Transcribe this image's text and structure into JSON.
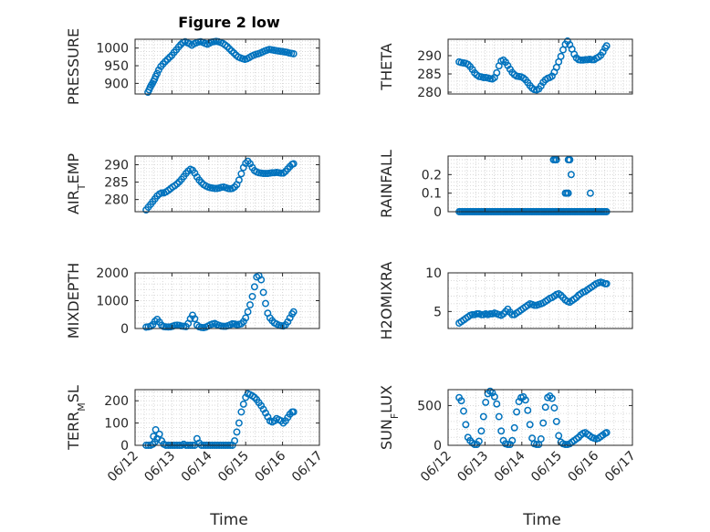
{
  "figure": {
    "title": "Figure 2 low",
    "xlabel_left": "Time",
    "xlabel_right": "Time",
    "marker_color": "#0072BD",
    "x_ticks": [
      "06/12",
      "06/13",
      "06/14",
      "06/15",
      "06/16",
      "06/17"
    ]
  },
  "chart_data": [
    {
      "type": "scatter",
      "id": "pressure",
      "ylabel": "PRESSURE",
      "yticks": [
        900,
        950,
        1000
      ],
      "ytick_labels": [
        "900",
        "950",
        "1000"
      ],
      "ylim": [
        870,
        1025
      ],
      "x": [
        0.35,
        0.38,
        0.41,
        0.44,
        0.47,
        0.5,
        0.53,
        0.56,
        0.6,
        0.64,
        0.7,
        0.76,
        0.82,
        0.88,
        0.94,
        1.0,
        1.06,
        1.12,
        1.18,
        1.24,
        1.3,
        1.36,
        1.42,
        1.48,
        1.54,
        1.6,
        1.66,
        1.72,
        1.78,
        1.84,
        1.9,
        1.96,
        2.02,
        2.08,
        2.14,
        2.2,
        2.26,
        2.32,
        2.38,
        2.44,
        2.5,
        2.56,
        2.62,
        2.68,
        2.74,
        2.8,
        2.86,
        2.92,
        2.98,
        3.04,
        3.1,
        3.16,
        3.22,
        3.28,
        3.34,
        3.4,
        3.46,
        3.52,
        3.58,
        3.64,
        3.7,
        3.76,
        3.82,
        3.88,
        3.94,
        4.0,
        4.06,
        4.12,
        4.18,
        4.24,
        4.3
      ],
      "y": [
        875,
        882,
        889,
        895,
        900,
        906,
        912,
        920,
        928,
        938,
        948,
        955,
        962,
        968,
        974,
        980,
        988,
        995,
        1003,
        1010,
        1016,
        1018,
        1015,
        1012,
        1008,
        1012,
        1015,
        1017,
        1018,
        1016,
        1013,
        1011,
        1014,
        1017,
        1018,
        1019,
        1018,
        1016,
        1013,
        1009,
        1004,
        998,
        992,
        986,
        980,
        975,
        972,
        970,
        968,
        970,
        973,
        977,
        980,
        982,
        984,
        986,
        989,
        992,
        994,
        996,
        995,
        994,
        993,
        992,
        991,
        990,
        989,
        988,
        986,
        985,
        984
      ]
    },
    {
      "type": "scatter",
      "id": "theta",
      "ylabel": "THETA",
      "yticks": [
        280,
        285,
        290
      ],
      "ytick_labels": [
        "280",
        "285",
        "290"
      ],
      "ylim": [
        279.5,
        294.5
      ],
      "x": [
        0.3,
        0.36,
        0.42,
        0.48,
        0.54,
        0.6,
        0.66,
        0.72,
        0.78,
        0.84,
        0.9,
        0.96,
        1.02,
        1.08,
        1.14,
        1.2,
        1.26,
        1.32,
        1.38,
        1.44,
        1.5,
        1.56,
        1.62,
        1.68,
        1.74,
        1.8,
        1.86,
        1.92,
        1.98,
        2.04,
        2.1,
        2.16,
        2.22,
        2.28,
        2.34,
        2.4,
        2.46,
        2.52,
        2.58,
        2.64,
        2.7,
        2.76,
        2.82,
        2.88,
        2.94,
        3.0,
        3.06,
        3.12,
        3.18,
        3.24,
        3.3,
        3.36,
        3.42,
        3.48,
        3.54,
        3.6,
        3.66,
        3.72,
        3.78,
        3.84,
        3.9,
        3.96,
        4.02,
        4.08,
        4.14,
        4.2,
        4.26,
        4.3
      ],
      "y": [
        288.3,
        288.1,
        288.0,
        287.9,
        287.6,
        287.0,
        286.2,
        285.3,
        284.7,
        284.3,
        284.2,
        284.0,
        284.0,
        283.9,
        283.7,
        283.6,
        284.0,
        285.3,
        287.2,
        288.5,
        288.8,
        288.2,
        287.3,
        286.3,
        285.4,
        284.8,
        284.4,
        284.3,
        284.2,
        283.9,
        283.4,
        282.6,
        281.8,
        281.1,
        280.7,
        280.6,
        280.9,
        281.7,
        282.7,
        283.4,
        283.8,
        284.0,
        284.4,
        285.5,
        286.8,
        288.3,
        289.8,
        291.6,
        293.1,
        294.0,
        293.0,
        291.8,
        290.4,
        289.4,
        288.9,
        288.8,
        288.8,
        288.9,
        288.9,
        289.0,
        288.9,
        288.9,
        289.3,
        289.6,
        290.1,
        291.0,
        292.1,
        292.7
      ]
    },
    {
      "type": "scatter",
      "id": "air_temp",
      "ylabel": "AIR_TEMP",
      "yticks": [
        280,
        285,
        290
      ],
      "ytick_labels": [
        "280",
        "285",
        "290"
      ],
      "ylim": [
        276.5,
        292.5
      ],
      "x": [
        0.3,
        0.36,
        0.42,
        0.48,
        0.54,
        0.6,
        0.66,
        0.72,
        0.78,
        0.84,
        0.9,
        0.96,
        1.02,
        1.08,
        1.14,
        1.2,
        1.26,
        1.32,
        1.38,
        1.44,
        1.5,
        1.56,
        1.62,
        1.68,
        1.74,
        1.8,
        1.86,
        1.92,
        1.98,
        2.04,
        2.1,
        2.16,
        2.22,
        2.28,
        2.34,
        2.4,
        2.46,
        2.52,
        2.58,
        2.64,
        2.7,
        2.76,
        2.82,
        2.88,
        2.94,
        3.0,
        3.06,
        3.12,
        3.18,
        3.24,
        3.3,
        3.36,
        3.42,
        3.48,
        3.54,
        3.6,
        3.66,
        3.72,
        3.78,
        3.84,
        3.9,
        3.96,
        4.02,
        4.08,
        4.14,
        4.2,
        4.26,
        4.3
      ],
      "y": [
        277.0,
        277.8,
        278.6,
        279.4,
        280.2,
        281.0,
        281.6,
        281.9,
        281.9,
        282.2,
        282.6,
        283.1,
        283.6,
        284.0,
        284.5,
        285.1,
        285.8,
        286.6,
        287.5,
        288.2,
        288.7,
        288.4,
        287.6,
        286.5,
        285.6,
        284.9,
        284.3,
        283.9,
        283.6,
        283.4,
        283.3,
        283.2,
        283.2,
        283.3,
        283.5,
        283.6,
        283.4,
        283.2,
        283.1,
        283.2,
        283.6,
        284.3,
        285.6,
        287.4,
        289.2,
        290.4,
        291.0,
        290.3,
        289.2,
        288.3,
        287.9,
        287.7,
        287.6,
        287.5,
        287.5,
        287.5,
        287.6,
        287.7,
        287.7,
        287.8,
        287.7,
        287.6,
        287.6,
        288.1,
        288.8,
        289.5,
        290.1,
        290.3
      ]
    },
    {
      "type": "scatter",
      "id": "rainfall",
      "ylabel": "RAINFALL",
      "yticks": [
        0,
        0.1,
        0.2
      ],
      "ytick_labels": [
        "0",
        "0.1",
        "0.2"
      ],
      "ylim": [
        0,
        0.3
      ],
      "x": [
        0.3,
        0.34,
        0.38,
        0.42,
        0.46,
        0.5,
        0.54,
        0.58,
        0.62,
        0.66,
        0.7,
        0.74,
        0.78,
        0.82,
        0.86,
        0.9,
        0.94,
        0.98,
        1.02,
        1.06,
        1.1,
        1.14,
        1.18,
        1.22,
        1.26,
        1.3,
        1.34,
        1.38,
        1.42,
        1.46,
        1.5,
        1.54,
        1.58,
        1.62,
        1.66,
        1.7,
        1.74,
        1.78,
        1.82,
        1.86,
        1.9,
        1.94,
        1.98,
        2.02,
        2.06,
        2.1,
        2.14,
        2.18,
        2.22,
        2.26,
        2.3,
        2.34,
        2.38,
        2.42,
        2.46,
        2.5,
        2.54,
        2.58,
        2.62,
        2.66,
        2.7,
        2.74,
        2.78,
        2.82,
        2.86,
        2.9,
        2.94,
        2.98,
        3.02,
        3.06,
        3.1,
        3.14,
        3.18,
        3.22,
        3.26,
        3.3,
        3.34,
        3.38,
        3.42,
        3.46,
        3.5,
        3.54,
        3.58,
        3.62,
        3.66,
        3.7,
        3.74,
        3.78,
        3.82,
        3.86,
        3.9,
        3.94,
        3.98,
        4.02,
        4.06,
        4.1,
        4.14,
        4.18,
        4.22,
        4.26,
        4.3,
        2.86,
        2.9,
        2.94,
        3.18,
        3.22,
        3.26,
        3.3,
        3.26,
        3.3,
        3.34,
        3.86
      ],
      "y": [
        0,
        0,
        0,
        0,
        0,
        0,
        0,
        0,
        0,
        0,
        0,
        0,
        0,
        0,
        0,
        0,
        0,
        0,
        0,
        0,
        0,
        0,
        0,
        0,
        0,
        0,
        0,
        0,
        0,
        0,
        0,
        0,
        0,
        0,
        0,
        0,
        0,
        0,
        0,
        0,
        0,
        0,
        0,
        0,
        0,
        0,
        0,
        0,
        0,
        0,
        0,
        0,
        0,
        0,
        0,
        0,
        0,
        0,
        0,
        0,
        0,
        0,
        0,
        0,
        0,
        0,
        0,
        0,
        0,
        0,
        0,
        0,
        0,
        0,
        0,
        0,
        0,
        0,
        0,
        0,
        0,
        0,
        0,
        0,
        0,
        0,
        0,
        0,
        0,
        0,
        0,
        0,
        0,
        0,
        0,
        0,
        0,
        0,
        0,
        0,
        0,
        0.28,
        0.28,
        0.28,
        0.1,
        0.1,
        0.1,
        0.28,
        0.28,
        0.28,
        0.2,
        0.1
      ]
    },
    {
      "type": "scatter",
      "id": "mixdepth",
      "ylabel": "MIXDEPTH",
      "yticks": [
        0,
        1000,
        2000
      ],
      "ytick_labels": [
        "0",
        "1000",
        "2000"
      ],
      "ylim": [
        0,
        2000
      ],
      "x": [
        0.3,
        0.36,
        0.42,
        0.48,
        0.54,
        0.6,
        0.66,
        0.72,
        0.78,
        0.84,
        0.9,
        0.96,
        1.02,
        1.08,
        1.14,
        1.2,
        1.26,
        1.32,
        1.38,
        1.44,
        1.5,
        1.56,
        1.62,
        1.68,
        1.74,
        1.8,
        1.86,
        1.92,
        1.98,
        2.04,
        2.1,
        2.16,
        2.22,
        2.28,
        2.34,
        2.4,
        2.46,
        2.52,
        2.58,
        2.64,
        2.7,
        2.76,
        2.82,
        2.88,
        2.94,
        3.0,
        3.06,
        3.12,
        3.18,
        3.24,
        3.3,
        3.36,
        3.42,
        3.48,
        3.54,
        3.6,
        3.66,
        3.72,
        3.78,
        3.84,
        3.9,
        3.96,
        4.02,
        4.08,
        4.14,
        4.2,
        4.26,
        4.3
      ],
      "y": [
        50,
        60,
        80,
        140,
        260,
        330,
        230,
        120,
        70,
        60,
        55,
        60,
        80,
        110,
        120,
        110,
        90,
        80,
        70,
        180,
        350,
        480,
        350,
        120,
        60,
        40,
        30,
        50,
        90,
        130,
        160,
        180,
        140,
        110,
        90,
        80,
        80,
        100,
        130,
        170,
        160,
        140,
        150,
        170,
        250,
        380,
        600,
        850,
        1150,
        1500,
        1850,
        1900,
        1750,
        1300,
        900,
        550,
        380,
        280,
        200,
        160,
        120,
        100,
        90,
        130,
        240,
        380,
        520,
        600
      ]
    },
    {
      "type": "scatter",
      "id": "h2omixra",
      "ylabel": "H2OMIXRA",
      "yticks": [
        5,
        10
      ],
      "ytick_labels": [
        "5",
        "10"
      ],
      "ylim": [
        2.8,
        10
      ],
      "x": [
        0.3,
        0.36,
        0.42,
        0.48,
        0.54,
        0.6,
        0.66,
        0.72,
        0.78,
        0.84,
        0.9,
        0.96,
        1.02,
        1.08,
        1.14,
        1.2,
        1.26,
        1.32,
        1.38,
        1.44,
        1.5,
        1.56,
        1.62,
        1.68,
        1.74,
        1.8,
        1.86,
        1.92,
        1.98,
        2.04,
        2.1,
        2.16,
        2.22,
        2.28,
        2.34,
        2.4,
        2.46,
        2.52,
        2.58,
        2.64,
        2.7,
        2.76,
        2.82,
        2.88,
        2.94,
        3.0,
        3.06,
        3.12,
        3.18,
        3.24,
        3.3,
        3.36,
        3.42,
        3.48,
        3.54,
        3.6,
        3.66,
        3.72,
        3.78,
        3.84,
        3.9,
        3.96,
        4.02,
        4.08,
        4.14,
        4.2,
        4.26,
        4.3
      ],
      "y": [
        3.5,
        3.7,
        3.9,
        4.1,
        4.3,
        4.5,
        4.6,
        4.6,
        4.7,
        4.7,
        4.6,
        4.6,
        4.7,
        4.6,
        4.7,
        4.7,
        4.8,
        4.7,
        4.6,
        4.5,
        4.7,
        5.0,
        5.3,
        4.9,
        4.6,
        4.6,
        4.8,
        5.0,
        5.2,
        5.4,
        5.6,
        5.8,
        6.0,
        5.9,
        5.8,
        5.8,
        5.9,
        6.0,
        6.1,
        6.3,
        6.5,
        6.7,
        6.8,
        7.0,
        7.2,
        7.3,
        7.1,
        6.8,
        6.5,
        6.3,
        6.2,
        6.4,
        6.6,
        6.8,
        7.1,
        7.3,
        7.5,
        7.6,
        7.8,
        8.0,
        8.2,
        8.4,
        8.6,
        8.7,
        8.8,
        8.7,
        8.6,
        8.6
      ]
    },
    {
      "type": "scatter",
      "id": "terr_msl",
      "ylabel": "TERR_MSL",
      "yticks": [
        0,
        100,
        200
      ],
      "ytick_labels": [
        "0",
        "100",
        "200"
      ],
      "ylim": [
        0,
        250
      ],
      "x": [
        0.3,
        0.36,
        0.42,
        0.48,
        0.54,
        0.6,
        0.66,
        0.72,
        0.78,
        0.84,
        0.9,
        0.96,
        1.02,
        1.08,
        1.14,
        1.2,
        1.26,
        1.32,
        1.38,
        1.44,
        1.5,
        1.56,
        1.62,
        1.68,
        1.74,
        1.8,
        1.86,
        1.92,
        1.98,
        2.04,
        2.1,
        2.16,
        2.22,
        2.28,
        2.34,
        2.4,
        2.46,
        2.52,
        2.58,
        2.64,
        2.7,
        2.76,
        2.82,
        2.88,
        2.94,
        3.0,
        3.06,
        3.12,
        3.18,
        3.24,
        3.3,
        3.36,
        3.42,
        3.48,
        3.54,
        3.6,
        3.66,
        3.72,
        3.78,
        3.84,
        3.9,
        3.96,
        4.02,
        4.08,
        4.14,
        4.2,
        4.26,
        4.3,
        0.5,
        0.56
      ],
      "y": [
        0,
        0,
        0,
        5,
        15,
        30,
        50,
        20,
        5,
        0,
        0,
        0,
        0,
        0,
        0,
        0,
        0,
        5,
        0,
        0,
        0,
        0,
        0,
        30,
        10,
        0,
        0,
        0,
        0,
        0,
        0,
        0,
        0,
        0,
        0,
        0,
        0,
        0,
        0,
        0,
        20,
        60,
        100,
        150,
        185,
        215,
        232,
        228,
        222,
        215,
        205,
        192,
        178,
        162,
        145,
        128,
        110,
        105,
        110,
        120,
        115,
        110,
        100,
        110,
        125,
        140,
        150,
        150,
        40,
        70
      ]
    },
    {
      "type": "scatter",
      "id": "sun_flux",
      "ylabel": "SUN_FLUX",
      "yticks": [
        0,
        500
      ],
      "ytick_labels": [
        "0",
        "500"
      ],
      "ylim": [
        0,
        700
      ],
      "x": [
        0.3,
        0.36,
        0.42,
        0.48,
        0.54,
        0.6,
        0.66,
        0.72,
        0.78,
        0.84,
        0.9,
        0.96,
        1.02,
        1.08,
        1.14,
        1.2,
        1.26,
        1.32,
        1.38,
        1.44,
        1.5,
        1.56,
        1.62,
        1.68,
        1.74,
        1.8,
        1.86,
        1.92,
        1.98,
        2.04,
        2.1,
        2.16,
        2.22,
        2.28,
        2.34,
        2.4,
        2.46,
        2.52,
        2.58,
        2.64,
        2.7,
        2.76,
        2.82,
        2.88,
        2.94,
        3.0,
        3.06,
        3.12,
        3.18,
        3.24,
        3.3,
        3.36,
        3.42,
        3.48,
        3.54,
        3.6,
        3.66,
        3.72,
        3.78,
        3.84,
        3.9,
        3.96,
        4.02,
        4.08,
        4.14,
        4.2,
        4.26,
        4.3
      ],
      "y": [
        600,
        560,
        430,
        260,
        100,
        60,
        30,
        10,
        10,
        50,
        180,
        360,
        540,
        650,
        680,
        660,
        610,
        520,
        360,
        180,
        60,
        20,
        10,
        10,
        60,
        220,
        420,
        550,
        600,
        610,
        570,
        440,
        260,
        90,
        20,
        10,
        10,
        80,
        280,
        480,
        600,
        620,
        590,
        470,
        300,
        120,
        40,
        20,
        10,
        10,
        20,
        40,
        60,
        80,
        100,
        130,
        150,
        160,
        140,
        120,
        100,
        90,
        80,
        90,
        110,
        130,
        150,
        160
      ]
    }
  ]
}
